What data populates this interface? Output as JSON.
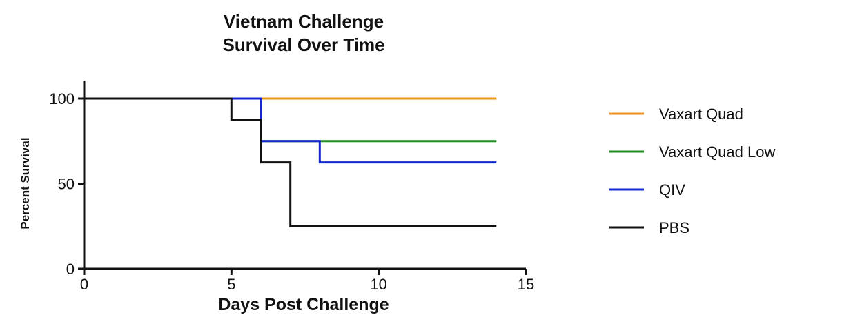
{
  "chart_data": {
    "type": "line",
    "step": true,
    "title": [
      "Vietnam Challenge",
      "Survival Over Time"
    ],
    "xlabel": "Days Post Challenge",
    "ylabel": "Percent Survival",
    "xlim": [
      0,
      15
    ],
    "ylim": [
      0,
      100
    ],
    "xticks": [
      0,
      5,
      10,
      15
    ],
    "yticks": [
      0,
      50,
      100
    ],
    "grid": false,
    "legend": "right",
    "series": [
      {
        "name": "Vaxart Quad",
        "color": "#f0921e",
        "points": [
          [
            0,
            100
          ],
          [
            14,
            100
          ]
        ]
      },
      {
        "name": "Vaxart Quad Low",
        "color": "#1e8c1e",
        "points": [
          [
            0,
            100
          ],
          [
            6,
            100
          ],
          [
            6,
            75
          ],
          [
            14,
            75
          ]
        ]
      },
      {
        "name": "QIV",
        "color": "#1428d2",
        "points": [
          [
            0,
            100
          ],
          [
            6,
            100
          ],
          [
            6,
            75
          ],
          [
            8,
            75
          ],
          [
            8,
            62.5
          ],
          [
            14,
            62.5
          ]
        ]
      },
      {
        "name": "PBS",
        "color": "#111111",
        "points": [
          [
            0,
            100
          ],
          [
            5,
            100
          ],
          [
            5,
            87.5
          ],
          [
            6,
            87.5
          ],
          [
            6,
            62.5
          ],
          [
            7,
            62.5
          ],
          [
            7,
            25
          ],
          [
            14,
            25
          ]
        ]
      }
    ]
  }
}
